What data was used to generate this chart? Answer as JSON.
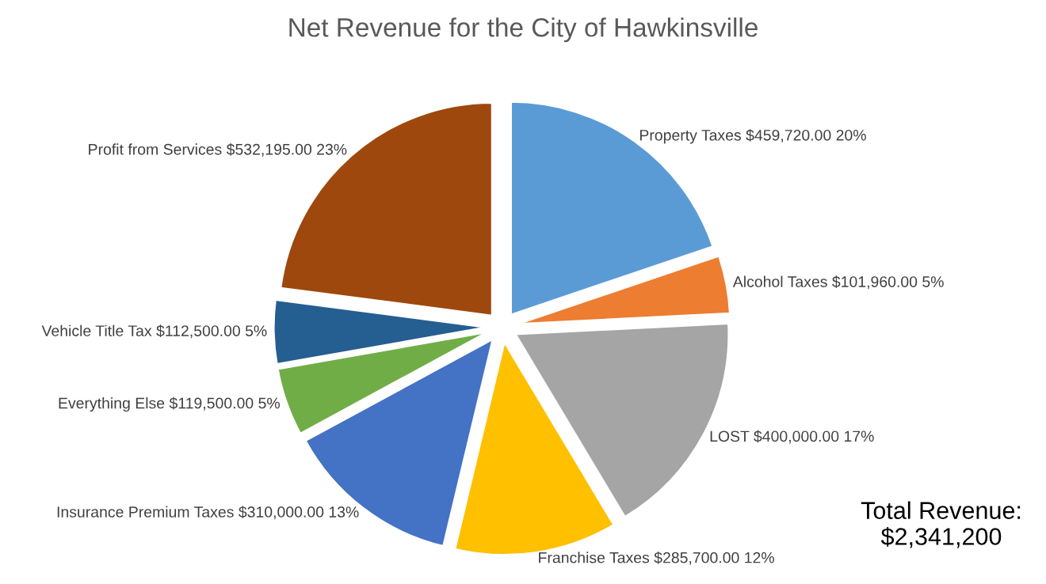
{
  "chart_data": {
    "type": "pie",
    "title": "Net Revenue for the City of Hawkinsville",
    "categories": [
      "Property Taxes",
      "Alcohol Taxes",
      "LOST",
      "Franchise Taxes",
      "Insurance Premium Taxes",
      "Everything Else",
      "Vehicle Title Tax",
      "Profit from Services"
    ],
    "values": [
      459720,
      101960,
      400000,
      285700,
      310000,
      119500,
      112500,
      532195
    ],
    "value_labels": [
      "$459,720.00 20%",
      "$101,960.00 5%",
      "$400,000.00 17%",
      "$285,700.00 12%",
      "$310,000.00 13%",
      "$119,500.00 5%",
      "$112,500.00 5%",
      "$532,195.00 23%"
    ],
    "colors": [
      "#5b9bd5",
      "#ed7d31",
      "#a5a5a5",
      "#ffc000",
      "#4472c4",
      "#70ad47",
      "#255e91",
      "#9e480e"
    ],
    "annotations": [
      "Total Revenue:\n$2,341,200"
    ]
  }
}
